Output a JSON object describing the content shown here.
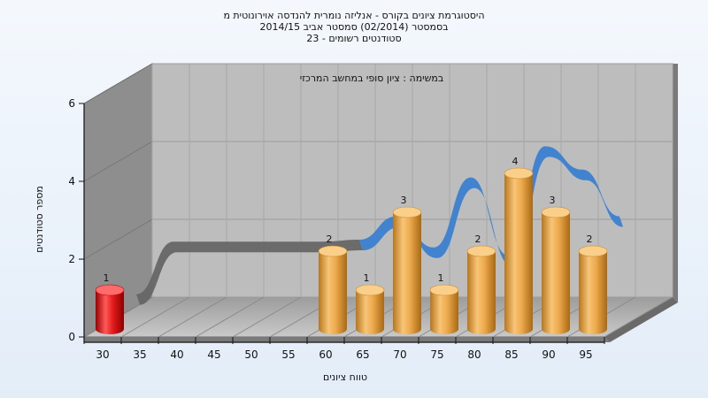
{
  "chart_data": {
    "type": "bar",
    "title_lines": [
      "היסטוגרמת ציונים בקורס - אנליזה נומרית להנדסה אוירונוטית מ",
      "בסמסטר  (02/2014)  סמסטר אביב 2014/15",
      "סטודנטים רשומים - 23"
    ],
    "subtitle": "במשימה : ציון סופי במחשב המרכזי",
    "xlabel": "טווח ציונים",
    "ylabel": "מספר סטודנטים",
    "ylim": [
      0,
      6
    ],
    "y_ticks": [
      "0",
      "2",
      "4",
      "6"
    ],
    "categories": [
      "30",
      "35",
      "40",
      "45",
      "50",
      "55",
      "60",
      "65",
      "70",
      "75",
      "80",
      "85",
      "90",
      "95"
    ],
    "series": [
      {
        "values": [
          1,
          null,
          null,
          null,
          null,
          null,
          2,
          1,
          3,
          1,
          2,
          4,
          3,
          2
        ],
        "colors": [
          "#e82020",
          null,
          null,
          null,
          null,
          null,
          "#e7a547",
          "#e7a547",
          "#e7a547",
          "#e7a547",
          "#e7a547",
          "#e7a547",
          "#e7a547",
          "#e7a547"
        ]
      }
    ],
    "trend_line": {
      "type": "smoothed distribution ribbon",
      "values": [
        0.6,
        1.95,
        1.95,
        1.95,
        1.95,
        1.95,
        2.0,
        2.6,
        1.8,
        3.6,
        1.6,
        4.4,
        3.8,
        2.6
      ],
      "color": "#3b7fd1",
      "flat_color": "#666666"
    },
    "grid": true,
    "legend": "none"
  }
}
